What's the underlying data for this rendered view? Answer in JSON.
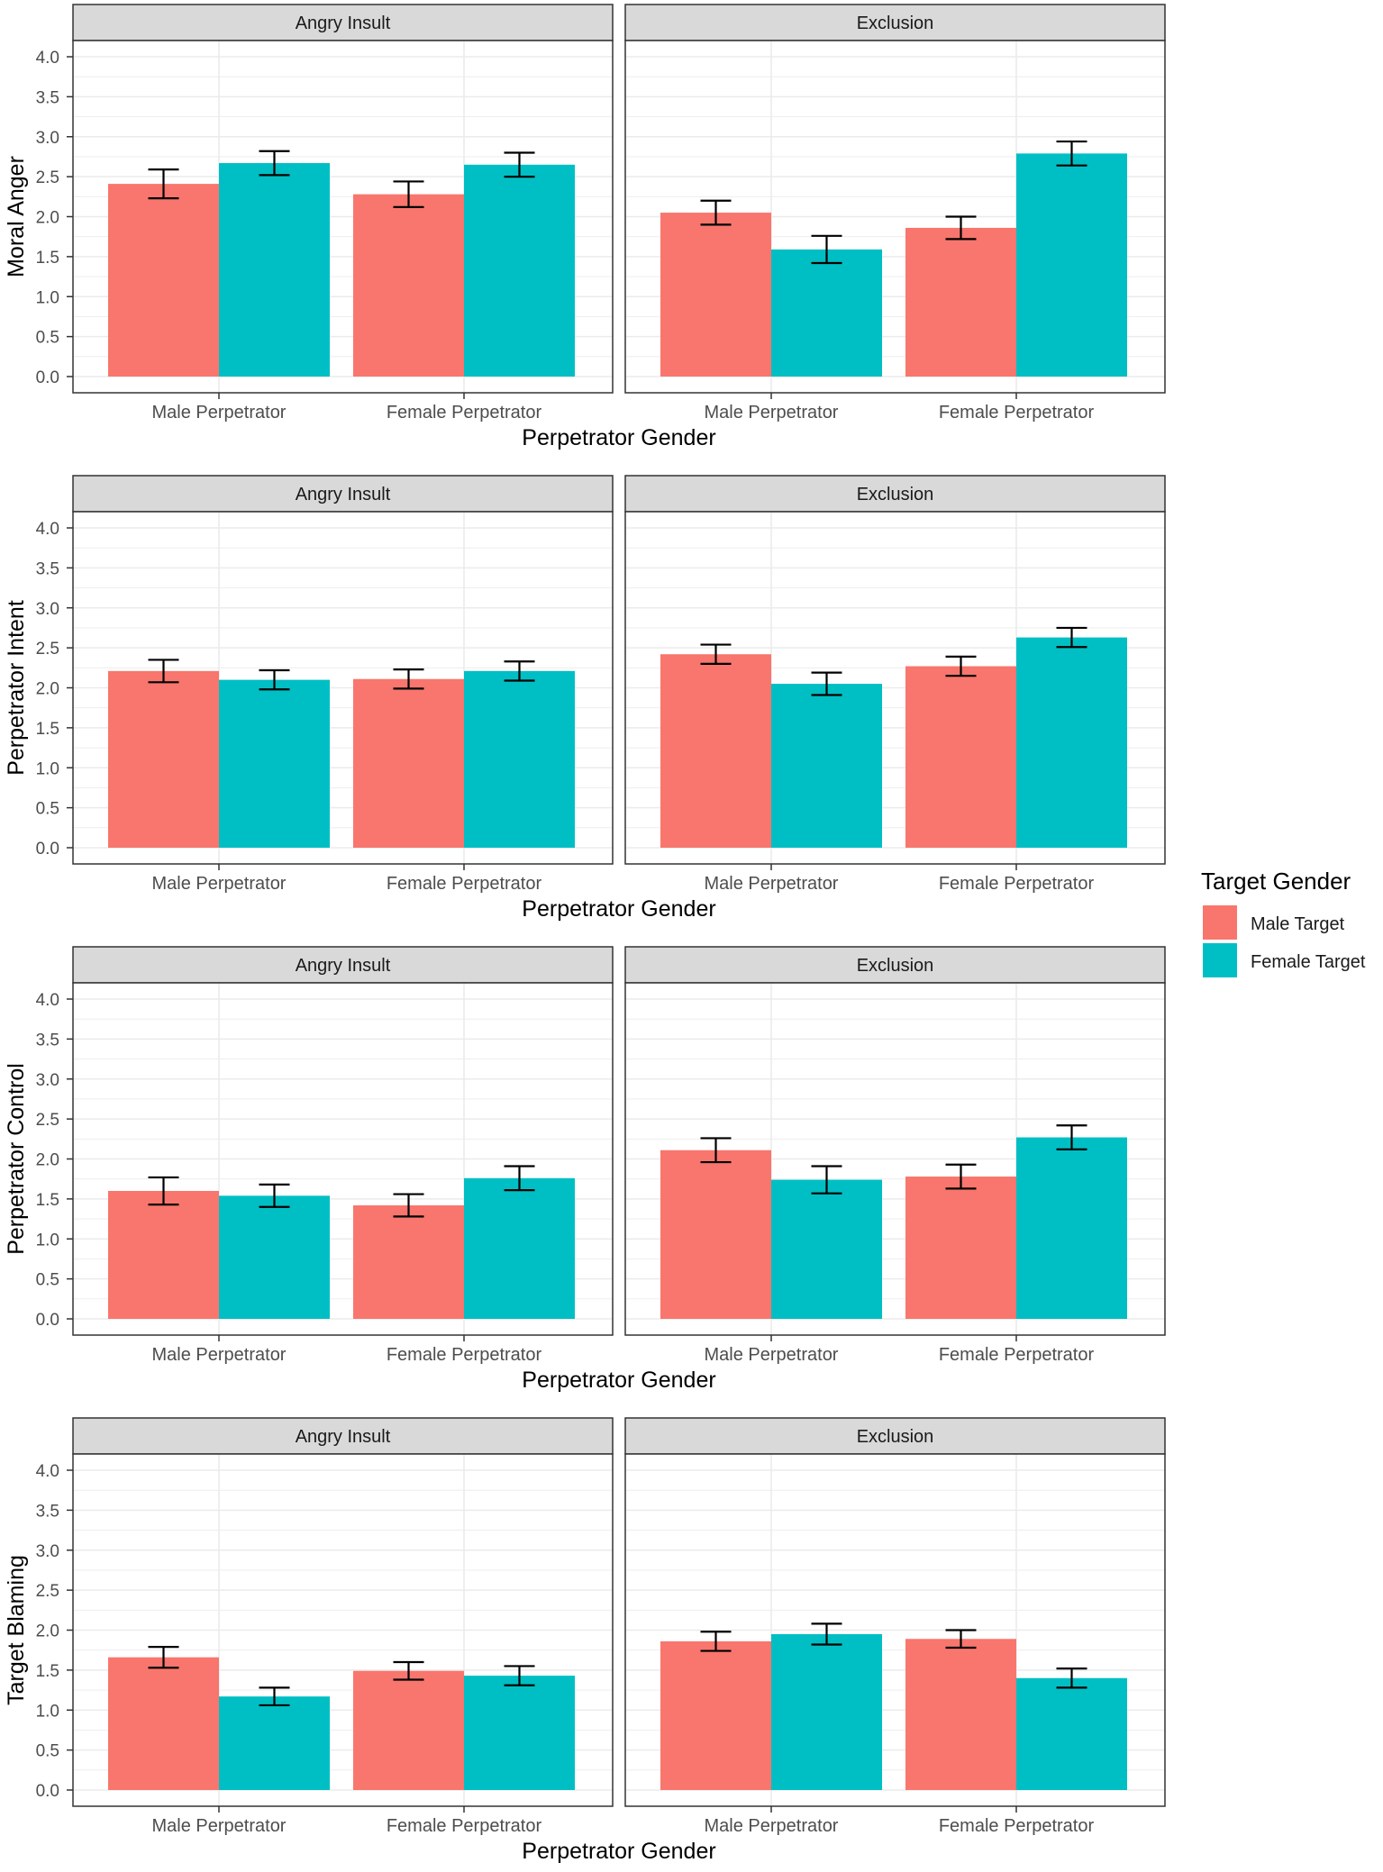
{
  "legend": {
    "title": "Target Gender",
    "items": [
      {
        "label": "Male Target",
        "color": "#F8766D"
      },
      {
        "label": "Female Target",
        "color": "#00BFC4"
      }
    ]
  },
  "chart_data": [
    {
      "type": "bar",
      "ylabel": "Moral Anger",
      "xlabel": "Perpetrator Gender",
      "ylim": [
        0,
        4.2
      ],
      "yticks": [
        "0.0",
        "0.5",
        "1.0",
        "1.5",
        "2.0",
        "2.5",
        "3.0",
        "3.5",
        "4.0"
      ],
      "categories": [
        "Male Perpetrator",
        "Female Perpetrator"
      ],
      "facets": [
        {
          "title": "Angry Insult",
          "series": [
            {
              "name": "Male Target",
              "values": [
                2.41,
                2.28
              ],
              "err": [
                0.18,
                0.16
              ]
            },
            {
              "name": "Female Target",
              "values": [
                2.67,
                2.65
              ],
              "err": [
                0.15,
                0.15
              ]
            }
          ]
        },
        {
          "title": "Exclusion",
          "series": [
            {
              "name": "Male Target",
              "values": [
                2.05,
                1.86
              ],
              "err": [
                0.15,
                0.14
              ]
            },
            {
              "name": "Female Target",
              "values": [
                1.59,
                2.79
              ],
              "err": [
                0.17,
                0.15
              ]
            }
          ]
        }
      ]
    },
    {
      "type": "bar",
      "ylabel": "Perpetrator Intent",
      "xlabel": "Perpetrator Gender",
      "ylim": [
        0,
        4.2
      ],
      "yticks": [
        "0.0",
        "0.5",
        "1.0",
        "1.5",
        "2.0",
        "2.5",
        "3.0",
        "3.5",
        "4.0"
      ],
      "categories": [
        "Male Perpetrator",
        "Female Perpetrator"
      ],
      "facets": [
        {
          "title": "Angry Insult",
          "series": [
            {
              "name": "Male Target",
              "values": [
                2.21,
                2.11
              ],
              "err": [
                0.14,
                0.12
              ]
            },
            {
              "name": "Female Target",
              "values": [
                2.1,
                2.21
              ],
              "err": [
                0.12,
                0.12
              ]
            }
          ]
        },
        {
          "title": "Exclusion",
          "series": [
            {
              "name": "Male Target",
              "values": [
                2.42,
                2.27
              ],
              "err": [
                0.12,
                0.12
              ]
            },
            {
              "name": "Female Target",
              "values": [
                2.05,
                2.63
              ],
              "err": [
                0.14,
                0.12
              ]
            }
          ]
        }
      ]
    },
    {
      "type": "bar",
      "ylabel": "Perpetrator Control",
      "xlabel": "Perpetrator Gender",
      "ylim": [
        0,
        4.2
      ],
      "yticks": [
        "0.0",
        "0.5",
        "1.0",
        "1.5",
        "2.0",
        "2.5",
        "3.0",
        "3.5",
        "4.0"
      ],
      "categories": [
        "Male Perpetrator",
        "Female Perpetrator"
      ],
      "facets": [
        {
          "title": "Angry Insult",
          "series": [
            {
              "name": "Male Target",
              "values": [
                1.6,
                1.42
              ],
              "err": [
                0.17,
                0.14
              ]
            },
            {
              "name": "Female Target",
              "values": [
                1.54,
                1.76
              ],
              "err": [
                0.14,
                0.15
              ]
            }
          ]
        },
        {
          "title": "Exclusion",
          "series": [
            {
              "name": "Male Target",
              "values": [
                2.11,
                1.78
              ],
              "err": [
                0.15,
                0.15
              ]
            },
            {
              "name": "Female Target",
              "values": [
                1.74,
                2.27
              ],
              "err": [
                0.17,
                0.15
              ]
            }
          ]
        }
      ]
    },
    {
      "type": "bar",
      "ylabel": "Target Blaming",
      "xlabel": "Perpetrator Gender",
      "ylim": [
        0,
        4.2
      ],
      "yticks": [
        "0.0",
        "0.5",
        "1.0",
        "1.5",
        "2.0",
        "2.5",
        "3.0",
        "3.5",
        "4.0"
      ],
      "categories": [
        "Male Perpetrator",
        "Female Perpetrator"
      ],
      "facets": [
        {
          "title": "Angry Insult",
          "series": [
            {
              "name": "Male Target",
              "values": [
                1.66,
                1.49
              ],
              "err": [
                0.13,
                0.11
              ]
            },
            {
              "name": "Female Target",
              "values": [
                1.17,
                1.43
              ],
              "err": [
                0.11,
                0.12
              ]
            }
          ]
        },
        {
          "title": "Exclusion",
          "series": [
            {
              "name": "Male Target",
              "values": [
                1.86,
                1.89
              ],
              "err": [
                0.12,
                0.11
              ]
            },
            {
              "name": "Female Target",
              "values": [
                1.95,
                1.4
              ],
              "err": [
                0.13,
                0.12
              ]
            }
          ]
        }
      ]
    }
  ]
}
